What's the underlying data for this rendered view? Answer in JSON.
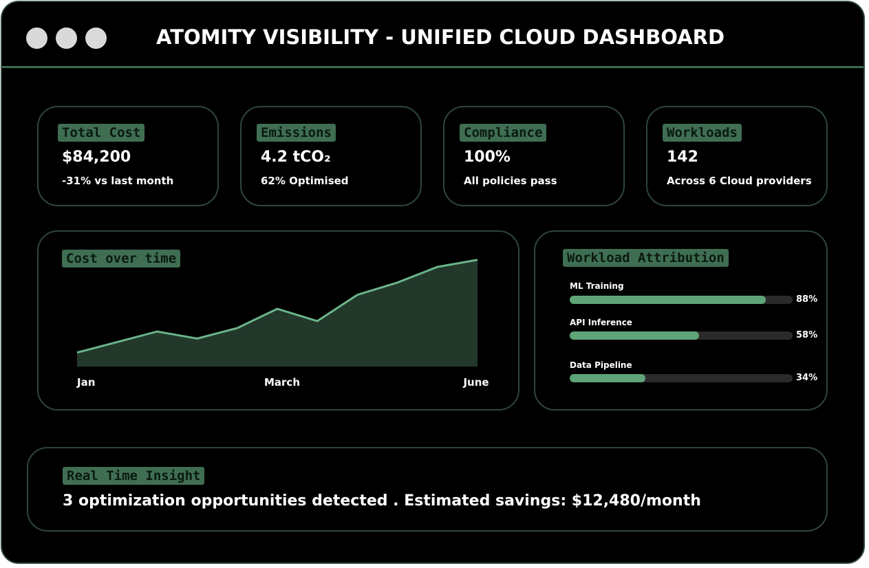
{
  "window": {
    "title": "ATOMITY VISIBILITY - UNIFIED CLOUD DASHBOARD",
    "controls": [
      "window-dot",
      "window-dot",
      "window-dot"
    ]
  },
  "stats": [
    {
      "tag": "Total Cost",
      "value": "$84,200",
      "sub": "-31% vs last month"
    },
    {
      "tag": "Emissions",
      "value": "4.2 tCO₂",
      "sub": "62% Optimised"
    },
    {
      "tag": "Compliance",
      "value": "100%",
      "sub": "All policies pass"
    },
    {
      "tag": "Workloads",
      "value": "142",
      "sub": "Across 6 Cloud providers"
    }
  ],
  "cost_chart": {
    "tag": "Cost over time"
  },
  "chart_data": {
    "type": "area",
    "title": "Cost over time",
    "x_tick_labels": [
      "Jan",
      "March",
      "June"
    ],
    "series": [
      {
        "values": [
          8,
          14,
          20,
          16,
          22,
          33,
          26,
          41,
          48,
          57,
          61
        ]
      }
    ],
    "ylim": [
      0,
      70
    ],
    "grid": false,
    "accent_color": "#6bb58a",
    "fill_color": "#22382b"
  },
  "attribution": {
    "tag": "Workload Attribution",
    "items": [
      {
        "label": "ML Training",
        "value": 88,
        "pct_label": "88%"
      },
      {
        "label": "API Inference",
        "value": 58,
        "pct_label": "58%"
      },
      {
        "label": "Data Pipeline",
        "value": 34,
        "pct_label": "34%"
      }
    ]
  },
  "insight": {
    "tag": "Real Time Insight",
    "text": "3 optimization opportunities detected . Estimated savings: $12,480/month"
  },
  "colors": {
    "background": "#000000",
    "accent": "#5fa478",
    "tag_bg": "#3f6e52",
    "border": "#2e4637"
  }
}
